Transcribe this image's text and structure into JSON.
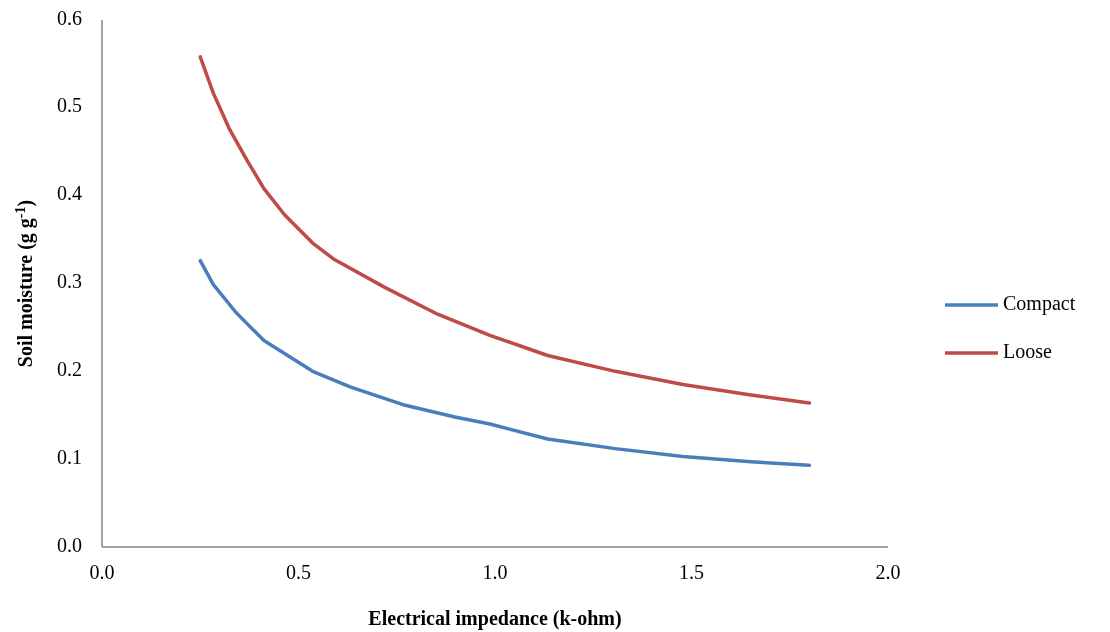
{
  "chart_data": {
    "type": "line",
    "xlabel": "Electrical impedance (k-ohm)",
    "ylabel": "Soil moisture (g g$^{-1}$)",
    "xlim": [
      0,
      2
    ],
    "ylim": [
      0,
      0.6
    ],
    "xticks": [
      {
        "value": 0,
        "label": "0.0"
      },
      {
        "value": 0.5,
        "label": "0.5"
      },
      {
        "value": 1,
        "label": "1.0"
      },
      {
        "value": 1.5,
        "label": "1.5"
      },
      {
        "value": 2,
        "label": "2.0"
      }
    ],
    "yticks": [
      {
        "value": 0,
        "label": "0.0"
      },
      {
        "value": 0.1,
        "label": "0.1"
      },
      {
        "value": 0.2,
        "label": "0.2"
      },
      {
        "value": 0.3,
        "label": "0.3"
      },
      {
        "value": 0.4,
        "label": "0.4"
      },
      {
        "value": 0.5,
        "label": "0.5"
      },
      {
        "value": 0.6,
        "label": "0.6"
      }
    ],
    "legend": "right",
    "series": [
      {
        "name": "Compact",
        "color": "#4a7ebb",
        "x": [
          0.25,
          0.283,
          0.341,
          0.412,
          0.536,
          0.633,
          0.766,
          0.898,
          0.987,
          1.134,
          1.306,
          1.478,
          1.651,
          1.8
        ],
        "values": [
          0.326,
          0.299,
          0.267,
          0.235,
          0.2,
          0.182,
          0.162,
          0.148,
          0.14,
          0.123,
          0.112,
          0.103,
          0.097,
          0.093
        ]
      },
      {
        "name": "Loose",
        "color": "#be4b48",
        "x": [
          0.25,
          0.283,
          0.323,
          0.368,
          0.412,
          0.465,
          0.536,
          0.589,
          0.722,
          0.854,
          0.987,
          1.134,
          1.306,
          1.478,
          1.651,
          1.8
        ],
        "values": [
          0.558,
          0.517,
          0.477,
          0.441,
          0.408,
          0.378,
          0.346,
          0.328,
          0.295,
          0.265,
          0.241,
          0.218,
          0.2,
          0.185,
          0.173,
          0.164
        ]
      }
    ]
  }
}
